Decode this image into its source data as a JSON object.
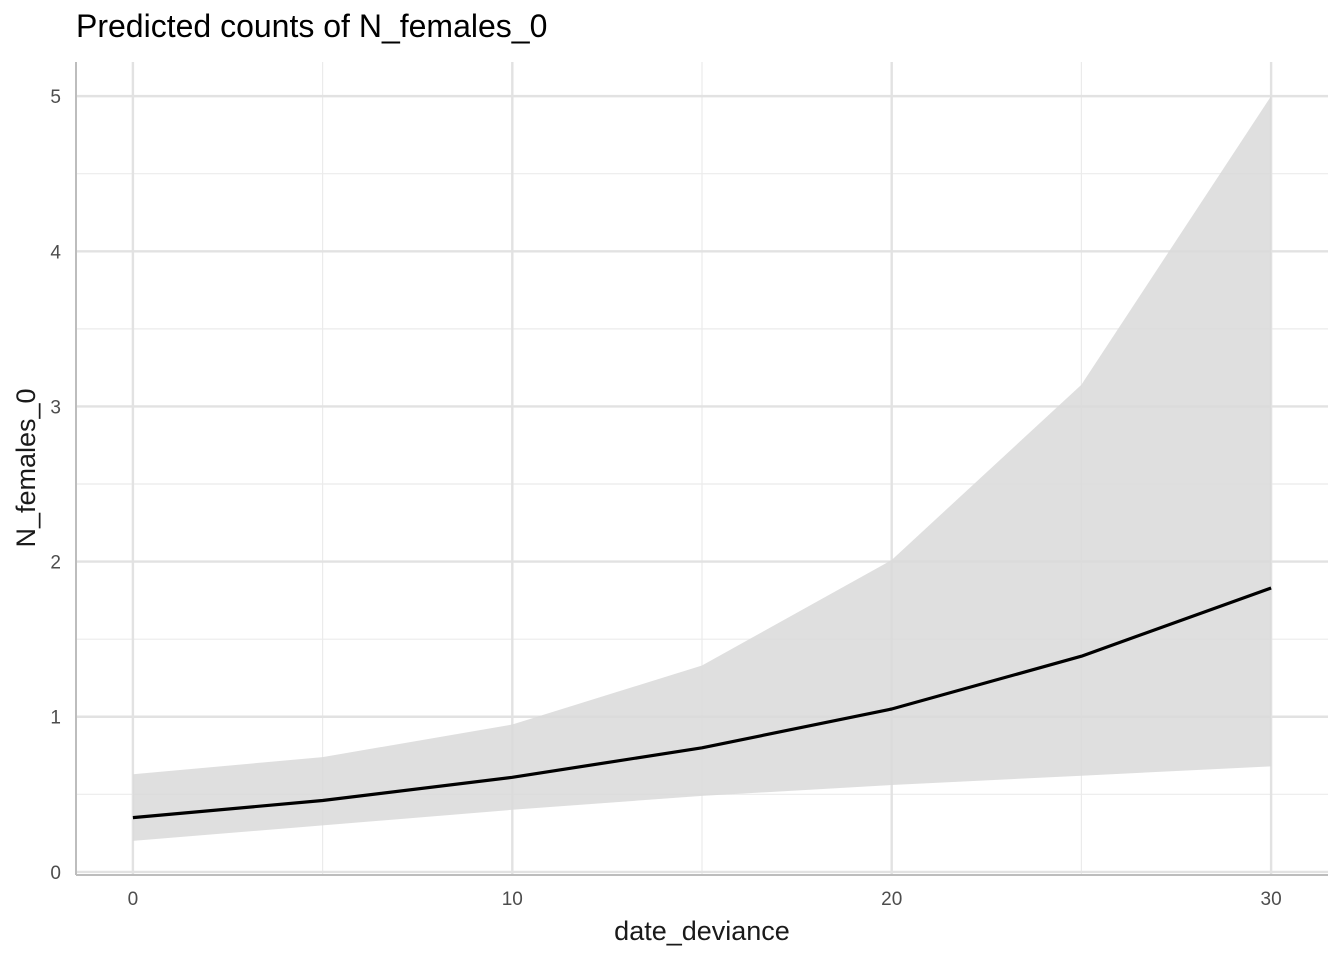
{
  "chart_data": {
    "type": "line",
    "title": "Predicted counts of N_females_0",
    "xlabel": "date_deviance",
    "ylabel": "N_females_0",
    "xlim": [
      -1.5,
      31.5
    ],
    "ylim": [
      -0.02,
      5.22
    ],
    "x_ticks": [
      0,
      10,
      20,
      30
    ],
    "x_tick_labels": [
      "0",
      "10",
      "20",
      "30"
    ],
    "x_minor_ticks": [
      5,
      15,
      25
    ],
    "y_ticks": [
      0,
      1,
      2,
      3,
      4,
      5
    ],
    "y_tick_labels": [
      "0",
      "1",
      "2",
      "3",
      "4",
      "5"
    ],
    "y_minor_ticks": [
      0.5,
      1.5,
      2.5,
      3.5,
      4.5
    ],
    "grid": true,
    "legend": "none",
    "x": [
      0,
      5,
      10,
      15,
      20,
      25,
      30
    ],
    "series": [
      {
        "values": [
          0.35,
          0.46,
          0.61,
          0.8,
          1.05,
          1.39,
          1.83
        ],
        "lower": [
          0.2,
          0.3,
          0.4,
          0.49,
          0.56,
          0.62,
          0.68
        ],
        "upper": [
          0.63,
          0.74,
          0.95,
          1.33,
          2.01,
          3.14,
          5.0
        ],
        "color": "#000000",
        "ribbon_color": "#d9d9d9"
      }
    ]
  }
}
